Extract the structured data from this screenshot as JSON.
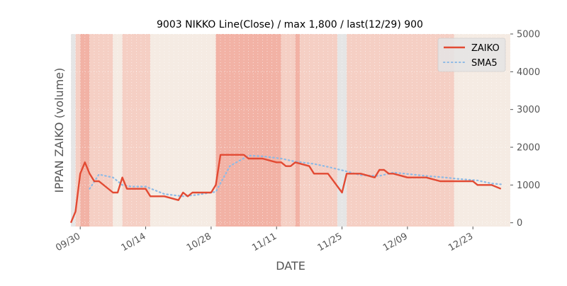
{
  "chart_data": {
    "type": "line",
    "title": "9003 NIKKO Line(Close) / max 1,800 / last(12/29) 900",
    "xlabel": "DATE",
    "ylabel": "IPPAN ZAIKO (volume)",
    "ylim": [
      -100,
      5000
    ],
    "y_axis_side": "right",
    "yticks": [
      0,
      1000,
      2000,
      3000,
      4000,
      5000
    ],
    "ytick_labels": [
      "0",
      "1000",
      "2000",
      "3000",
      "4000",
      "5000"
    ],
    "xlim": [
      "2019-09-28",
      "2019-12-31"
    ],
    "xticks": [
      "2019-09-30",
      "2019-10-14",
      "2019-10-28",
      "2019-11-11",
      "2019-11-25",
      "2019-12-09",
      "2019-12-23"
    ],
    "xtick_labels": [
      "09/30",
      "10/14",
      "10/28",
      "11/11",
      "11/25",
      "12/09",
      "12/23"
    ],
    "grid": true,
    "legend_position": "top-right",
    "colors": {
      "zaiko": "#E24A33",
      "sma5": "#8EBAE5",
      "axes_bg": "#E5E5E5",
      "band_light": "#F5EBE3",
      "band_mid": "#F5CFC4",
      "band_strong": "#F2B2A5",
      "text": "#555555"
    },
    "series": [
      {
        "name": "ZAIKO",
        "style": "solid",
        "x": [
          "2019-09-28",
          "2019-09-29",
          "2019-09-30",
          "2019-10-01",
          "2019-10-02",
          "2019-10-03",
          "2019-10-04",
          "2019-10-07",
          "2019-10-08",
          "2019-10-09",
          "2019-10-10",
          "2019-10-11",
          "2019-10-14",
          "2019-10-15",
          "2019-10-16",
          "2019-10-17",
          "2019-10-18",
          "2019-10-21",
          "2019-10-22",
          "2019-10-23",
          "2019-10-24",
          "2019-10-25",
          "2019-10-28",
          "2019-10-29",
          "2019-10-30",
          "2019-10-31",
          "2019-11-01",
          "2019-11-04",
          "2019-11-05",
          "2019-11-06",
          "2019-11-07",
          "2019-11-08",
          "2019-11-11",
          "2019-11-12",
          "2019-11-13",
          "2019-11-14",
          "2019-11-15",
          "2019-11-18",
          "2019-11-19",
          "2019-11-20",
          "2019-11-21",
          "2019-11-22",
          "2019-11-25",
          "2019-11-26",
          "2019-11-27",
          "2019-11-28",
          "2019-11-29",
          "2019-12-02",
          "2019-12-03",
          "2019-12-04",
          "2019-12-05",
          "2019-12-06",
          "2019-12-09",
          "2019-12-10",
          "2019-12-11",
          "2019-12-12",
          "2019-12-13",
          "2019-12-16",
          "2019-12-17",
          "2019-12-18",
          "2019-12-19",
          "2019-12-20",
          "2019-12-23",
          "2019-12-24",
          "2019-12-25",
          "2019-12-26",
          "2019-12-27",
          "2019-12-29"
        ],
        "values": [
          0,
          300,
          1300,
          1600,
          1300,
          1100,
          1100,
          800,
          800,
          1200,
          900,
          900,
          900,
          700,
          700,
          700,
          700,
          600,
          800,
          700,
          800,
          800,
          800,
          1000,
          1800,
          1800,
          1800,
          1800,
          1700,
          1700,
          1700,
          1700,
          1600,
          1600,
          1500,
          1500,
          1600,
          1500,
          1300,
          1300,
          1300,
          1300,
          800,
          1300,
          1300,
          1300,
          1300,
          1200,
          1400,
          1400,
          1300,
          1300,
          1200,
          1200,
          1200,
          1200,
          1200,
          1100,
          1100,
          1100,
          1100,
          1100,
          1100,
          1000,
          1000,
          1000,
          1000,
          900
        ]
      },
      {
        "name": "SMA5",
        "style": "dotted",
        "x": [
          "2019-10-02",
          "2019-10-04",
          "2019-10-07",
          "2019-10-09",
          "2019-10-11",
          "2019-10-14",
          "2019-10-16",
          "2019-10-18",
          "2019-10-22",
          "2019-10-25",
          "2019-10-29",
          "2019-11-01",
          "2019-11-05",
          "2019-11-08",
          "2019-11-12",
          "2019-11-15",
          "2019-11-19",
          "2019-11-22",
          "2019-11-26",
          "2019-11-29",
          "2019-12-03",
          "2019-12-06",
          "2019-12-10",
          "2019-12-13",
          "2019-12-17",
          "2019-12-20",
          "2019-12-24",
          "2019-12-27",
          "2019-12-29"
        ],
        "values": [
          900,
          1280,
          1200,
          1000,
          960,
          960,
          860,
          760,
          700,
          740,
          820,
          1500,
          1780,
          1760,
          1700,
          1620,
          1560,
          1480,
          1360,
          1260,
          1240,
          1330,
          1280,
          1240,
          1200,
          1160,
          1120,
          1040,
          1020
        ]
      }
    ],
    "background_bands": [
      {
        "start": "2019-09-29",
        "end": "2019-09-30",
        "level": "mid"
      },
      {
        "start": "2019-09-30",
        "end": "2019-10-02",
        "level": "strong"
      },
      {
        "start": "2019-10-02",
        "end": "2019-10-07",
        "level": "mid"
      },
      {
        "start": "2019-10-07",
        "end": "2019-10-09",
        "level": "light"
      },
      {
        "start": "2019-10-09",
        "end": "2019-10-15",
        "level": "mid"
      },
      {
        "start": "2019-10-15",
        "end": "2019-10-29",
        "level": "light"
      },
      {
        "start": "2019-10-29",
        "end": "2019-11-12",
        "level": "strong"
      },
      {
        "start": "2019-11-12",
        "end": "2019-11-15",
        "level": "mid"
      },
      {
        "start": "2019-11-15",
        "end": "2019-11-16",
        "level": "strong"
      },
      {
        "start": "2019-11-16",
        "end": "2019-11-24",
        "level": "mid"
      },
      {
        "start": "2019-11-26",
        "end": "2019-12-19",
        "level": "mid"
      },
      {
        "start": "2019-12-19",
        "end": "2019-12-31",
        "level": "light"
      }
    ]
  }
}
